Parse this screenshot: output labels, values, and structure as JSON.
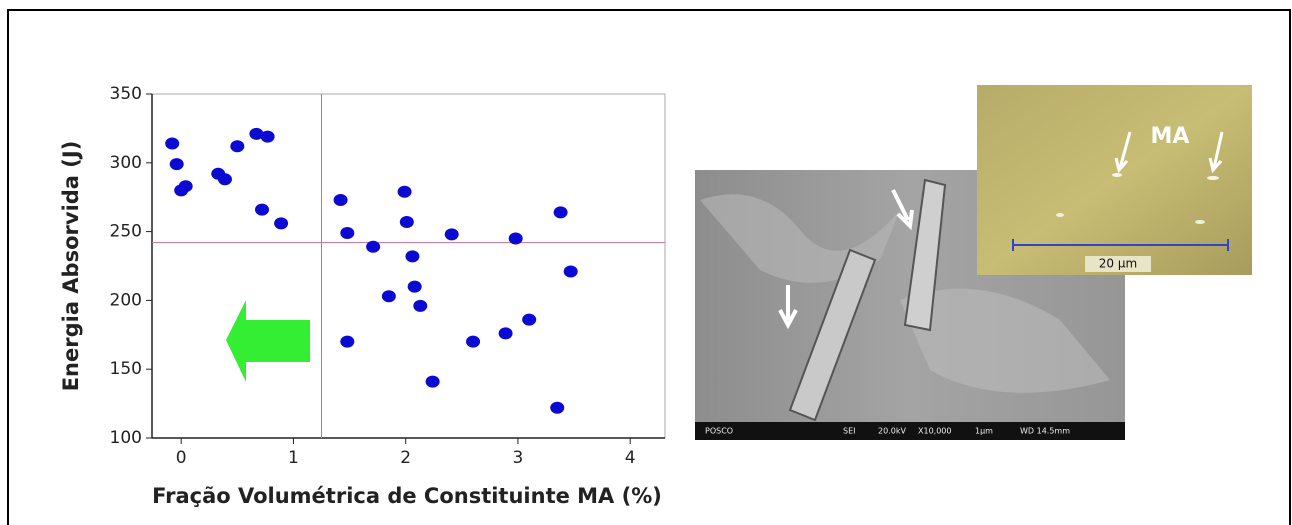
{
  "chart_data": {
    "type": "scatter",
    "xlabel": "Fração Volumétrica de Constituinte MA (%)",
    "ylabel": "Energia Absorvida (J)",
    "x": [
      -0.08,
      -0.04,
      0,
      0.04,
      0.33,
      0.39,
      0.5,
      0.67,
      0.77,
      0.72,
      0.89,
      1.42,
      1.48,
      1.48,
      1.71,
      1.85,
      1.99,
      2.01,
      2.06,
      2.08,
      2.13,
      2.24,
      2.41,
      2.6,
      2.89,
      2.98,
      3.1,
      3.35,
      3.38,
      3.47
    ],
    "values": [
      314,
      299,
      280,
      283,
      292,
      288,
      312,
      321,
      319,
      266,
      256,
      273,
      249,
      170,
      239,
      203,
      279,
      257,
      232,
      210,
      196,
      141,
      248,
      170,
      176,
      245,
      186,
      122,
      264,
      221
    ],
    "color": "#0a0ad2",
    "xlim": [
      -0.26,
      4.31
    ],
    "ylim": [
      100,
      350
    ],
    "xticks": [
      0,
      1,
      2,
      3,
      4
    ],
    "yticks": [
      100,
      150,
      200,
      250,
      300,
      350
    ],
    "reference_lines": {
      "x": 1.25,
      "y": 242,
      "color": "#c0709a"
    }
  },
  "images": {
    "optical": {
      "label": "MA",
      "scale": "20 µm"
    },
    "sem": {
      "footer": [
        "POSCO",
        "SEI",
        "20.0kV",
        "X10,000",
        "1µm",
        "WD 14.5mm"
      ]
    }
  }
}
